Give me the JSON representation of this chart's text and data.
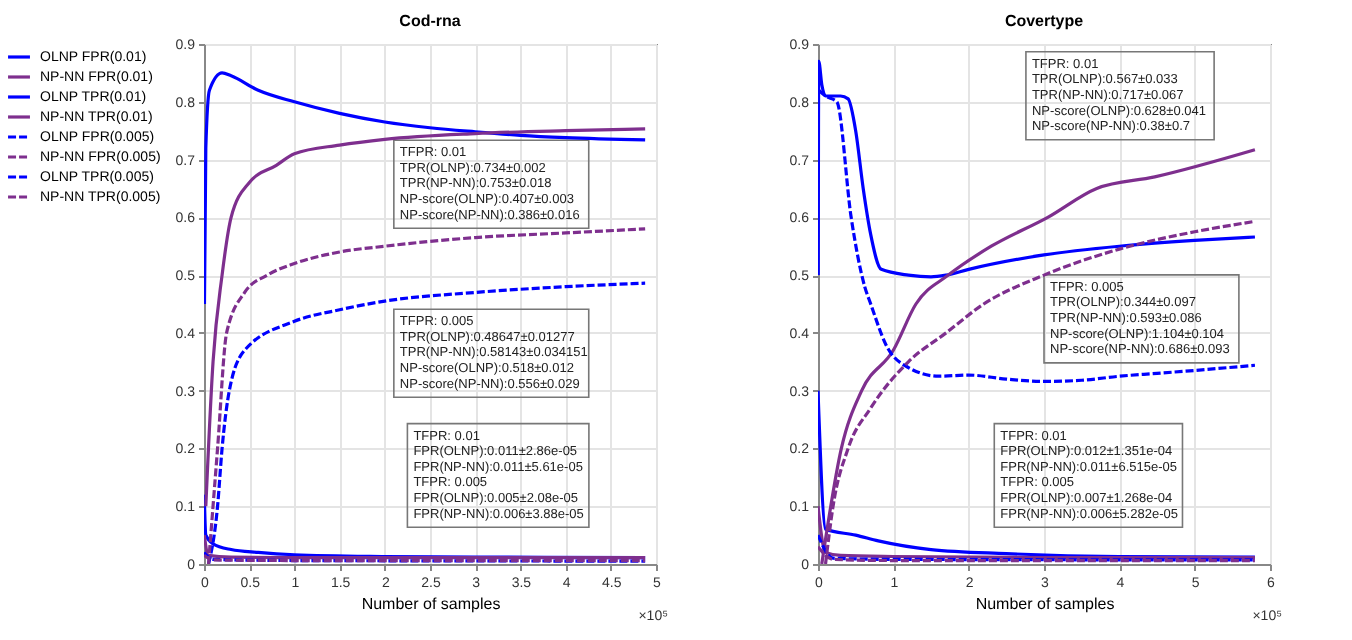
{
  "chart_data": [
    {
      "type": "line",
      "title": "Cod-rna",
      "xlabel": "Number of samples",
      "xlim": [
        0,
        5
      ],
      "xticks": [
        0,
        0.5,
        1,
        1.5,
        2,
        2.5,
        3,
        3.5,
        4,
        4.5,
        5
      ],
      "ylim": [
        0,
        0.9
      ],
      "yticks": [
        0,
        0.1,
        0.2,
        0.3,
        0.4,
        0.5,
        0.6,
        0.7,
        0.8,
        0.9
      ],
      "grid": true,
      "legend": "left",
      "annotations": [
        "×10⁵",
        "TFPR: 0.01\nTPR(OLNP):0.734±0.002\nTPR(NP-NN):0.753±0.018\nNP-score(OLNP):0.407±0.003\nNP-score(NP-NN):0.386±0.016",
        "TFPR: 0.005\nTPR(OLNP):0.48647±0.01277\nTPR(NP-NN):0.58143±0.034151\nNP-score(OLNP):0.518±0.012\nNP-score(NP-NN):0.556±0.029",
        "TFPR: 0.01\nFPR(OLNP):0.011±2.86e-05\nFPR(NP-NN):0.011±5.61e-05\nTFPR: 0.005\nFPR(OLNP):0.005±2.08e-05\nFPR(NP-NN):0.006±3.88e-05"
      ],
      "series": [
        {
          "name": "OLNP FPR(0.01)",
          "color": "#0000ff",
          "line_style": "solid",
          "x": [
            0.003,
            0.02,
            0.1,
            0.3,
            0.6,
            1,
            2,
            3,
            4.88
          ],
          "values": [
            0.12,
            0.05,
            0.035,
            0.025,
            0.02,
            0.016,
            0.013,
            0.012,
            0.011
          ]
        },
        {
          "name": "NP-NN FPR(0.01)",
          "color": "#7e2f8e",
          "line_style": "solid",
          "x": [
            0.003,
            0.05,
            0.3,
            1,
            4.88
          ],
          "values": [
            0.05,
            0.015,
            0.012,
            0.011,
            0.011
          ]
        },
        {
          "name": "OLNP TPR(0.01)",
          "color": "#0000ff",
          "line_style": "solid",
          "x": [
            0.005,
            0.02,
            0.06,
            0.2,
            0.3,
            0.6,
            1,
            1.5,
            2,
            2.5,
            3,
            3.5,
            4,
            4.88
          ],
          "values": [
            0.45,
            0.72,
            0.82,
            0.85,
            0.845,
            0.82,
            0.8,
            0.78,
            0.765,
            0.755,
            0.748,
            0.742,
            0.738,
            0.734
          ]
        },
        {
          "name": "NP-NN TPR(0.01)",
          "color": "#7e2f8e",
          "line_style": "solid",
          "x": [
            0.02,
            0.1,
            0.2,
            0.3,
            0.5,
            0.8,
            1,
            1.5,
            2,
            3,
            4,
            4.88
          ],
          "values": [
            0.1,
            0.35,
            0.5,
            0.6,
            0.66,
            0.69,
            0.71,
            0.725,
            0.735,
            0.745,
            0.75,
            0.753
          ]
        },
        {
          "name": "OLNP FPR(0.005)",
          "color": "#0000ff",
          "line_style": "dashed",
          "x": [
            0,
            0.1,
            1,
            4.88
          ],
          "values": [
            0.02,
            0.008,
            0.006,
            0.005
          ]
        },
        {
          "name": "NP-NN FPR(0.005)",
          "color": "#7e2f8e",
          "line_style": "dashed",
          "x": [
            0,
            0.1,
            1,
            4.88
          ],
          "values": [
            0.015,
            0.007,
            0.006,
            0.006
          ]
        },
        {
          "name": "OLNP TPR(0.005)",
          "color": "#0000ff",
          "line_style": "dashed",
          "x": [
            0.05,
            0.15,
            0.2,
            0.28,
            0.45,
            1,
            1.5,
            2,
            3,
            4,
            4.88
          ],
          "values": [
            0.0,
            0.1,
            0.2,
            0.3,
            0.37,
            0.42,
            0.44,
            0.455,
            0.47,
            0.48,
            0.486
          ]
        },
        {
          "name": "NP-NN TPR(0.005)",
          "color": "#7e2f8e",
          "line_style": "dashed",
          "x": [
            0.05,
            0.15,
            0.25,
            0.45,
            0.7,
            1,
            1.5,
            2,
            3,
            4,
            4.88
          ],
          "values": [
            0.0,
            0.2,
            0.4,
            0.47,
            0.5,
            0.52,
            0.54,
            0.55,
            0.565,
            0.573,
            0.58
          ]
        }
      ]
    },
    {
      "type": "line",
      "title": "Covertype",
      "xlabel": "Number of samples",
      "xlim": [
        0,
        6
      ],
      "xticks": [
        0,
        1,
        2,
        3,
        4,
        5,
        6
      ],
      "ylim": [
        0,
        0.9
      ],
      "yticks": [
        0,
        0.1,
        0.2,
        0.3,
        0.4,
        0.5,
        0.6,
        0.7,
        0.8,
        0.9
      ],
      "grid": true,
      "annotations": [
        "×10⁵",
        "TFPR: 0.01\nTPR(OLNP):0.567±0.033\nTPR(NP-NN):0.717±0.067\nNP-score(OLNP):0.628±0.041\nNP-score(NP-NN):0.38±0.7",
        "TFPR: 0.005\nTPR(OLNP):0.344±0.097\nTPR(NP-NN):0.593±0.086\nNP-score(OLNP):1.104±0.104\nNP-score(NP-NN):0.686±0.093",
        "TFPR: 0.01\nFPR(OLNP):0.012±1.351e-04\nFPR(NP-NN):0.011±6.515e-05\nTFPR: 0.005\nFPR(OLNP):0.007±1.268e-04\nFPR(NP-NN):0.006±5.282e-05"
      ],
      "series": [
        {
          "color": "#0000ff",
          "line_style": "solid",
          "x": [
            0,
            0.1,
            0.5,
            0.8,
            1.5,
            2.5,
            4,
            5.8
          ],
          "values": [
            0.3,
            0.06,
            0.05,
            0.04,
            0.025,
            0.018,
            0.013,
            0.012
          ]
        },
        {
          "color": "#7e2f8e",
          "line_style": "solid",
          "x": [
            0,
            0.1,
            0.3,
            1,
            3,
            5.8
          ],
          "values": [
            0.1,
            0.02,
            0.015,
            0.013,
            0.011,
            0.011
          ]
        },
        {
          "color": "#0000ff",
          "line_style": "solid",
          "x": [
            0.003,
            0.01,
            0.05,
            0.1,
            0.3,
            0.4,
            0.5,
            0.6,
            0.7,
            0.84,
            1.2,
            1.5,
            1.7,
            2,
            3,
            4,
            5,
            5.8
          ],
          "values": [
            0.5,
            0.87,
            0.83,
            0.81,
            0.81,
            0.805,
            0.75,
            0.65,
            0.57,
            0.51,
            0.5,
            0.497,
            0.5,
            0.51,
            0.535,
            0.55,
            0.56,
            0.566
          ]
        },
        {
          "color": "#7e2f8e",
          "line_style": "solid",
          "x": [
            0.05,
            0.31,
            0.58,
            1,
            1.3,
            1.73,
            2.3,
            3.05,
            3.7,
            4.47,
            5.8
          ],
          "values": [
            0.0,
            0.2,
            0.3,
            0.37,
            0.45,
            0.5,
            0.55,
            0.6,
            0.65,
            0.67,
            0.717
          ]
        },
        {
          "color": "#0000ff",
          "line_style": "dashed",
          "x": [
            0,
            0.2,
            1,
            5.8
          ],
          "values": [
            0.05,
            0.01,
            0.008,
            0.007
          ]
        },
        {
          "color": "#7e2f8e",
          "line_style": "dashed",
          "x": [
            0,
            0.2,
            1,
            5.8
          ],
          "values": [
            0.03,
            0.008,
            0.006,
            0.006
          ]
        },
        {
          "color": "#0000ff",
          "line_style": "dashed",
          "x": [
            0.01,
            0.1,
            0.25,
            0.44,
            0.62,
            0.7,
            0.9,
            1.2,
            1.6,
            2,
            2.5,
            3,
            3.5,
            4,
            4.5,
            5,
            5.8
          ],
          "values": [
            0.82,
            0.81,
            0.8,
            0.6,
            0.48,
            0.45,
            0.38,
            0.34,
            0.325,
            0.327,
            0.32,
            0.316,
            0.318,
            0.325,
            0.33,
            0.335,
            0.344
          ]
        },
        {
          "color": "#7e2f8e",
          "line_style": "dashed",
          "x": [
            0.1,
            0.2,
            0.4,
            0.7,
            1.2,
            1.7,
            2.2,
            3,
            4,
            5,
            5.8
          ],
          "values": [
            0.0,
            0.1,
            0.2,
            0.27,
            0.35,
            0.4,
            0.45,
            0.5,
            0.545,
            0.575,
            0.593
          ]
        }
      ]
    }
  ]
}
